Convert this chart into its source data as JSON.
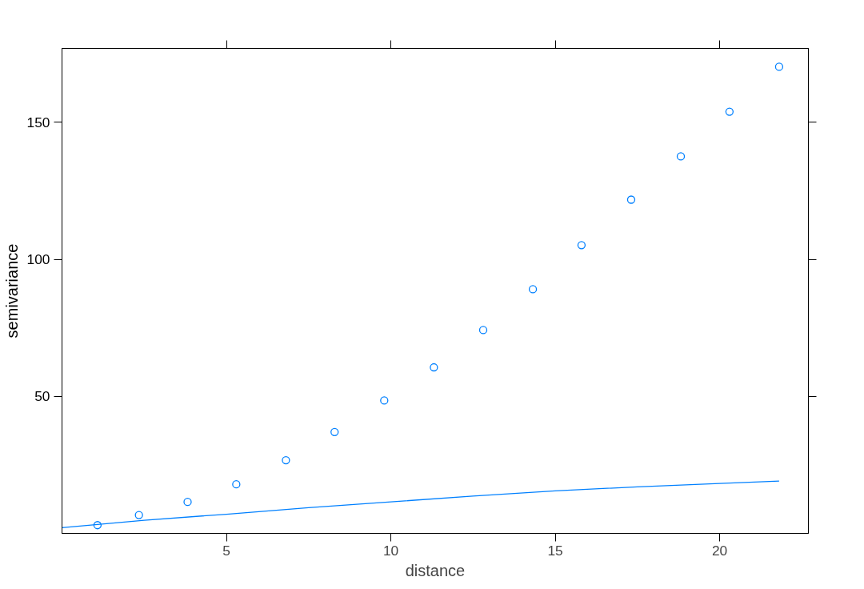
{
  "chart_data": {
    "type": "scatter",
    "xlabel": "distance",
    "ylabel": "semivariance",
    "xlim": [
      0,
      22.7
    ],
    "ylim": [
      0,
      177
    ],
    "xticks": [
      5,
      10,
      15,
      20
    ],
    "yticks": [
      50,
      100,
      150
    ],
    "grid": false,
    "series": [
      {
        "color": "#0080ff",
        "marker": "circle",
        "x": [
          1.08,
          2.34,
          3.82,
          5.3,
          6.81,
          8.29,
          9.8,
          11.31,
          12.81,
          14.32,
          15.8,
          17.31,
          18.82,
          20.3,
          21.81
        ],
        "values": [
          3.0,
          6.7,
          11.5,
          17.9,
          26.7,
          37.0,
          48.5,
          60.6,
          74.2,
          89.1,
          105.2,
          121.8,
          137.6,
          153.9,
          170.3
        ]
      },
      {
        "type": "line",
        "color": "#0080ff",
        "x": [
          0,
          2.5,
          5,
          7.5,
          10,
          12.5,
          15,
          17.5,
          20,
          21.81
        ],
        "values": [
          2.1,
          4.8,
          7.0,
          9.4,
          11.5,
          13.6,
          15.5,
          17.0,
          18.2,
          19.1
        ]
      }
    ]
  }
}
